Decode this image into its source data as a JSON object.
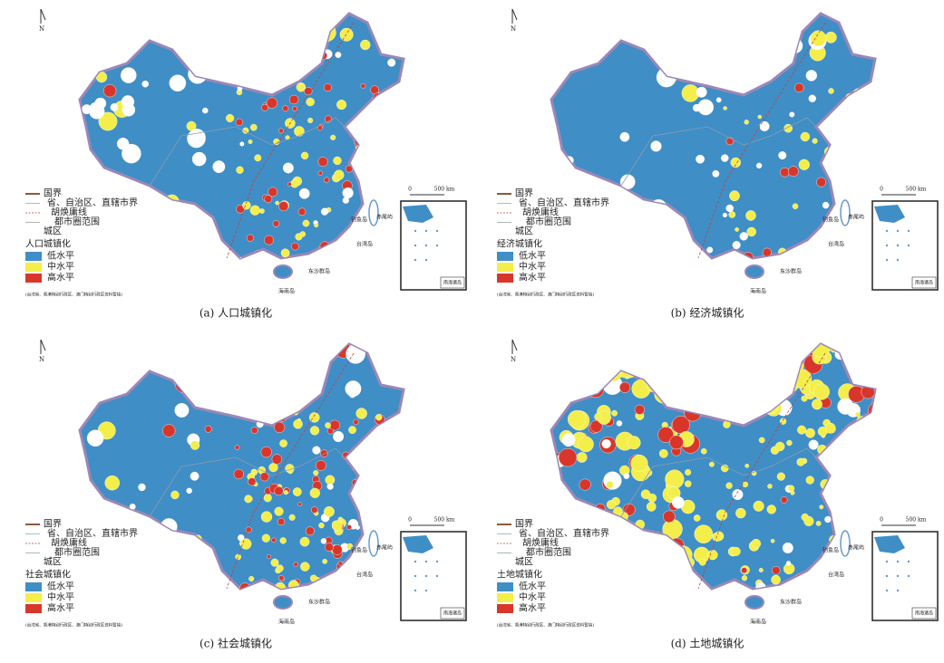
{
  "north": "N",
  "scale": {
    "zero": "0",
    "distance": "500 km"
  },
  "boundary_legend": [
    "国界",
    "省、自治区、直辖市界",
    "胡焕庸线",
    "都市圈范围",
    "城区"
  ],
  "islands": [
    "钓鱼岛",
    "赤尾屿",
    "台湾岛",
    "东沙群岛",
    "海南岛"
  ],
  "inset_title": "南海诸岛",
  "note": "(台湾省、香港特别行政区、澳门特别行政区资料暂缺)",
  "levels": [
    {
      "label": "低水平",
      "color": "#3f8ec6"
    },
    {
      "label": "中水平",
      "color": "#f3ee4a"
    },
    {
      "label": "高水平",
      "color": "#d9362b"
    }
  ],
  "panels": [
    {
      "legend_title": "人口城镇化",
      "caption": "(a) 人口城镇化"
    },
    {
      "legend_title": "经济城镇化",
      "caption": "(b) 经济城镇化"
    },
    {
      "legend_title": "社会城镇化",
      "caption": "(c) 社会城镇化"
    },
    {
      "legend_title": "土地城镇化",
      "caption": "(d) 土地城镇化"
    }
  ]
}
